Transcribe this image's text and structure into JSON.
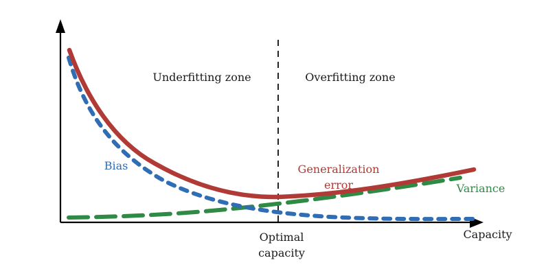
{
  "colors": {
    "axis": "#000000",
    "bias": "#2f6db5",
    "generalization": "#b03a35",
    "variance": "#2f8a45",
    "optimal_line": "#222222",
    "text": "#1a1a1a"
  },
  "labels": {
    "underfitting_zone": "Underfitting zone",
    "overfitting_zone": "Overfitting zone",
    "bias": "Bias",
    "generalization_error_line1": "Generalization",
    "generalization_error_line2": "error",
    "variance": "Variance",
    "optimal_line1": "Optimal",
    "optimal_line2": "capacity",
    "x_axis": "Capacity"
  }
}
